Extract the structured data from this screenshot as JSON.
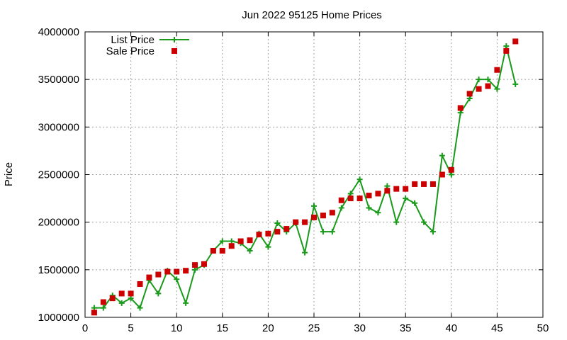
{
  "chart_data": {
    "type": "line",
    "title": "Jun 2022 95125 Home Prices",
    "xlabel": "",
    "ylabel": "Price",
    "xlim": [
      0,
      50
    ],
    "ylim": [
      1000000,
      4000000
    ],
    "xticks": [
      0,
      5,
      10,
      15,
      20,
      25,
      30,
      35,
      40,
      45,
      50
    ],
    "yticks": [
      1000000,
      1500000,
      2000000,
      2500000,
      3000000,
      3500000,
      4000000
    ],
    "grid": true,
    "legend_position": "top-left",
    "series": [
      {
        "name": "List Price",
        "style": "line+cross",
        "color": "#1a9a1a",
        "x": [
          1,
          2,
          3,
          4,
          5,
          6,
          7,
          8,
          9,
          10,
          11,
          12,
          13,
          14,
          15,
          16,
          17,
          18,
          19,
          20,
          21,
          22,
          23,
          24,
          25,
          26,
          27,
          28,
          29,
          30,
          31,
          32,
          33,
          34,
          35,
          36,
          37,
          38,
          39,
          40,
          41,
          42,
          43,
          44,
          45,
          46,
          47
        ],
        "values": [
          1100000,
          1100000,
          1230000,
          1150000,
          1200000,
          1100000,
          1390000,
          1250000,
          1490000,
          1400000,
          1150000,
          1500000,
          1550000,
          1700000,
          1800000,
          1800000,
          1780000,
          1700000,
          1880000,
          1740000,
          1990000,
          1900000,
          1990000,
          1680000,
          2170000,
          1900000,
          1900000,
          2150000,
          2300000,
          2450000,
          2150000,
          2100000,
          2380000,
          2000000,
          2250000,
          2200000,
          2000000,
          1900000,
          2700000,
          2500000,
          3150000,
          3300000,
          3500000,
          3500000,
          3400000,
          3850000,
          3450000
        ]
      },
      {
        "name": "Sale Price",
        "style": "square",
        "color": "#cc0000",
        "x": [
          1,
          2,
          3,
          4,
          5,
          6,
          7,
          8,
          9,
          10,
          11,
          12,
          13,
          14,
          15,
          16,
          17,
          18,
          19,
          20,
          21,
          22,
          23,
          24,
          25,
          26,
          27,
          28,
          29,
          30,
          31,
          32,
          33,
          34,
          35,
          36,
          37,
          38,
          39,
          40,
          41,
          42,
          43,
          44,
          45,
          46,
          47
        ],
        "values": [
          1050000,
          1160000,
          1200000,
          1250000,
          1250000,
          1350000,
          1420000,
          1450000,
          1480000,
          1480000,
          1490000,
          1550000,
          1560000,
          1700000,
          1700000,
          1750000,
          1800000,
          1810000,
          1870000,
          1880000,
          1900000,
          1930000,
          2000000,
          2000000,
          2050000,
          2070000,
          2100000,
          2230000,
          2250000,
          2250000,
          2280000,
          2300000,
          2330000,
          2350000,
          2350000,
          2400000,
          2400000,
          2400000,
          2500000,
          2550000,
          3200000,
          3350000,
          3400000,
          3430000,
          3600000,
          3800000,
          3900000
        ]
      }
    ]
  }
}
